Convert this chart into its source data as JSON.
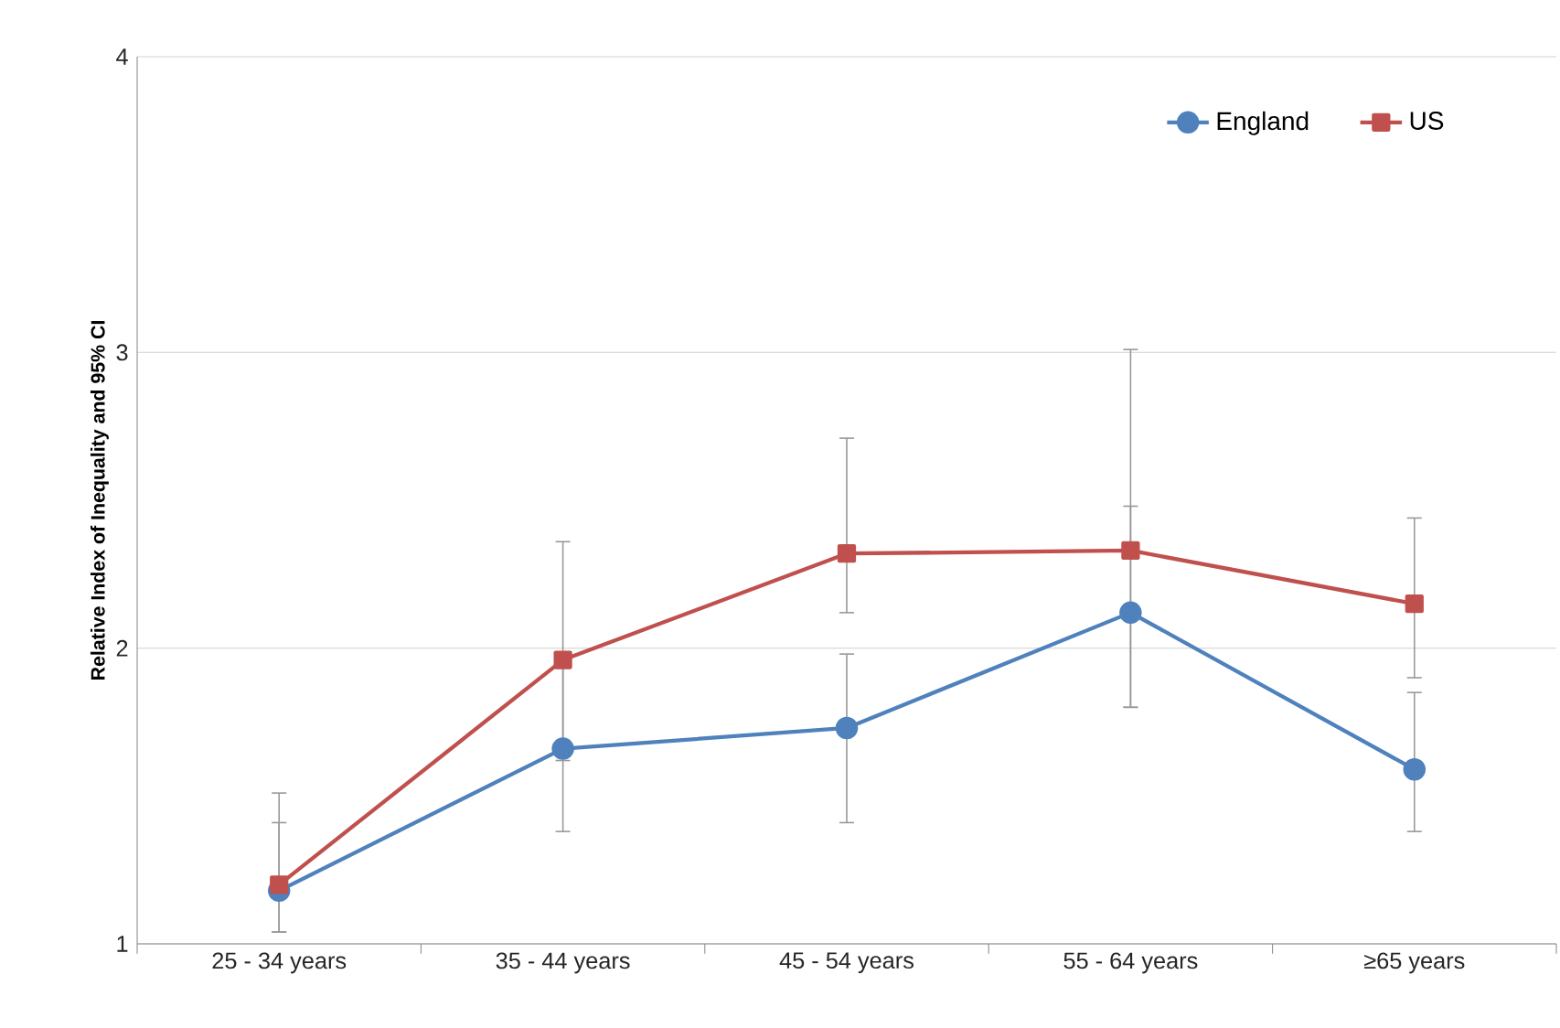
{
  "chart_data": {
    "type": "line",
    "ylabel": "Relative Index of Inequality  and 95% CI",
    "categories": [
      "25 - 34 years",
      "35 - 44 years",
      "45 - 54 years",
      "55 - 64 years",
      "≥65 years"
    ],
    "series": [
      {
        "name": "England",
        "color": "#4f81bd",
        "marker": "circle",
        "values": [
          1.18,
          1.66,
          1.73,
          2.12,
          1.59
        ],
        "errors": [
          [
            1.04,
            1.41
          ],
          [
            1.38,
            1.98
          ],
          [
            1.41,
            1.98
          ],
          [
            1.8,
            2.48
          ],
          [
            1.38,
            1.85
          ]
        ]
      },
      {
        "name": "US",
        "color": "#c0504d",
        "marker": "square",
        "values": [
          1.2,
          1.96,
          2.32,
          2.33,
          2.15
        ],
        "errors": [
          [
            1.04,
            1.51
          ],
          [
            1.62,
            2.36
          ],
          [
            2.12,
            2.71
          ],
          [
            1.8,
            3.01
          ],
          [
            1.9,
            2.44
          ]
        ]
      }
    ],
    "ylim": [
      1,
      4
    ],
    "yticks": [
      1,
      2,
      3,
      4
    ],
    "grid": "y",
    "legend": "top right",
    "line_style": "solid"
  }
}
